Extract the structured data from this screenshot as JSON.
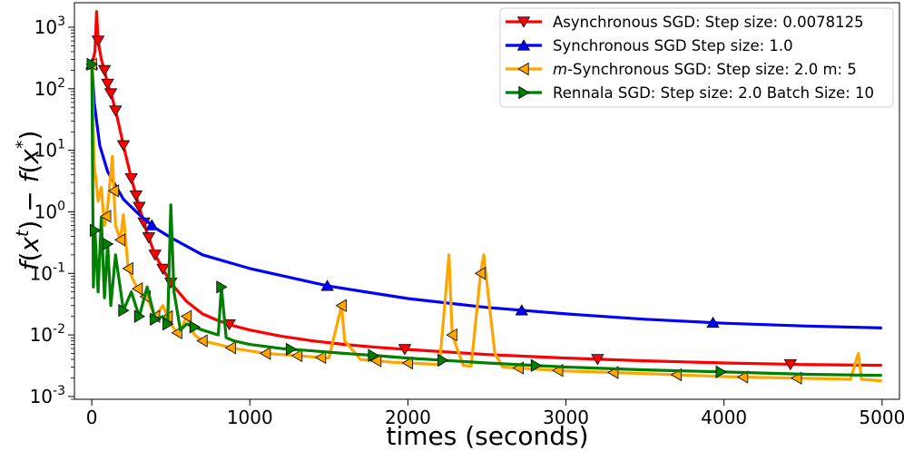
{
  "chart_data": {
    "type": "line",
    "title": "",
    "xlabel": "times (seconds)",
    "ylabel": "f(x^t) − f(x^*)",
    "xlim": [
      -110,
      5110
    ],
    "ylim": [
      0.0009,
      2500
    ],
    "yscale": "log",
    "x_ticks": [
      0,
      1000,
      2000,
      3000,
      4000,
      5000
    ],
    "y_ticks": [
      0.001,
      0.01,
      0.1,
      1,
      10,
      100,
      1000
    ],
    "y_tick_labels": [
      "10",
      "10",
      "10",
      "10",
      "10",
      "10",
      "10"
    ],
    "y_tick_exponents": [
      "-3",
      "-2",
      "-1",
      "0",
      "1",
      "2",
      "3"
    ],
    "grid": false,
    "legend_position": "upper right",
    "series": [
      {
        "name": "Asynchronous SGD: Step size: 0.0078125",
        "name_parts": [
          "Asynchronous SGD: Step size: 0.0078125"
        ],
        "color": "#ff0000",
        "marker": "triangle-down",
        "x": [
          0,
          20,
          30,
          40,
          60,
          80,
          100,
          130,
          160,
          200,
          250,
          300,
          350,
          400,
          500,
          600,
          700,
          800,
          900,
          1000,
          1200,
          1400,
          1600,
          1800,
          2000,
          2500,
          3000,
          3500,
          4000,
          4500,
          5000
        ],
        "y": [
          250,
          400,
          1800,
          600,
          300,
          200,
          120,
          70,
          35,
          12,
          3.5,
          1.2,
          0.45,
          0.2,
          0.07,
          0.035,
          0.022,
          0.017,
          0.014,
          0.012,
          0.0095,
          0.008,
          0.007,
          0.0063,
          0.0058,
          0.0048,
          0.0042,
          0.0038,
          0.0035,
          0.0033,
          0.0032
        ],
        "marker_x": [
          40,
          80,
          100,
          120,
          150,
          200,
          250,
          280,
          300,
          330,
          360,
          400,
          450,
          500,
          870,
          1980,
          3200,
          4420
        ]
      },
      {
        "name": "Synchronous SGD Step size: 1.0",
        "name_parts": [
          "Synchronous SGD Step size: 1.0"
        ],
        "color": "#0000ff",
        "marker": "triangle-up",
        "x": [
          0,
          15,
          50,
          100,
          200,
          300,
          400,
          500,
          700,
          1000,
          1500,
          2000,
          2500,
          3000,
          3500,
          4000,
          4500,
          5000
        ],
        "y": [
          250,
          60,
          12,
          4.5,
          1.6,
          0.9,
          0.55,
          0.38,
          0.2,
          0.12,
          0.062,
          0.039,
          0.028,
          0.022,
          0.018,
          0.0155,
          0.014,
          0.013
        ],
        "marker_x": [
          0,
          380,
          1490,
          2720,
          3930
        ]
      },
      {
        "name": "m-Synchronous  SGD: Step size: 2.0 m: 5",
        "name_parts": [
          "m",
          "-Synchronous  SGD: Step size: 2.0 m: 5"
        ],
        "color": "#ffa500",
        "marker": "triangle-left",
        "x": [
          0,
          15,
          40,
          60,
          80,
          100,
          130,
          150,
          180,
          200,
          230,
          260,
          300,
          350,
          400,
          450,
          500,
          550,
          600,
          650,
          700,
          800,
          900,
          1000,
          1100,
          1200,
          1300,
          1400,
          1500,
          1580,
          1600,
          1700,
          1800,
          1900,
          2000,
          2100,
          2200,
          2260,
          2280,
          2350,
          2400,
          2460,
          2480,
          2550,
          2600,
          2800,
          3000,
          3200,
          3400,
          3600,
          3800,
          4000,
          4200,
          4400,
          4600,
          4800,
          4850,
          4870,
          5000
        ],
        "y": [
          250,
          6,
          1.5,
          2.5,
          0.6,
          1.2,
          8,
          0.6,
          0.35,
          0.9,
          0.12,
          0.08,
          0.05,
          0.04,
          0.02,
          0.03,
          0.015,
          0.01,
          0.02,
          0.01,
          0.008,
          0.007,
          0.006,
          0.0055,
          0.005,
          0.0048,
          0.0046,
          0.0044,
          0.0042,
          0.03,
          0.008,
          0.004,
          0.0038,
          0.0036,
          0.0035,
          0.0034,
          0.0033,
          0.2,
          0.01,
          0.0032,
          0.0031,
          0.1,
          0.2,
          0.005,
          0.003,
          0.0028,
          0.0026,
          0.0025,
          0.0024,
          0.0023,
          0.0022,
          0.0021,
          0.00205,
          0.002,
          0.00195,
          0.0019,
          0.005,
          0.0019,
          0.0018
        ],
        "marker_x": [
          0,
          90,
          140,
          180,
          230,
          290,
          340,
          400,
          480,
          540,
          600,
          700,
          880,
          1100,
          1300,
          1450,
          1580,
          1800,
          2000,
          2280,
          2460,
          2700,
          2950,
          3300,
          3700,
          4120,
          4460
        ]
      },
      {
        "name": "Rennala SGD: Step size: 2.0 Batch Size: 10",
        "name_parts": [
          "Rennala SGD: Step size: 2.0 Batch Size: 10"
        ],
        "color": "#008000",
        "marker": "triangle-right",
        "x": [
          0,
          10,
          20,
          40,
          60,
          80,
          100,
          120,
          150,
          200,
          250,
          300,
          350,
          400,
          450,
          480,
          500,
          520,
          560,
          600,
          700,
          800,
          820,
          850,
          900,
          1000,
          1200,
          1400,
          1600,
          1800,
          2000,
          2500,
          3000,
          3500,
          4000,
          4500,
          5000
        ],
        "y": [
          250,
          0.06,
          0.5,
          0.05,
          0.8,
          0.04,
          0.3,
          0.03,
          0.2,
          0.025,
          0.05,
          0.02,
          0.06,
          0.018,
          0.02,
          0.015,
          1.3,
          0.05,
          0.012,
          0.015,
          0.012,
          0.01,
          0.06,
          0.009,
          0.008,
          0.007,
          0.006,
          0.0055,
          0.005,
          0.0046,
          0.0042,
          0.0035,
          0.003,
          0.0027,
          0.0025,
          0.0023,
          0.0022
        ],
        "marker_x": [
          0,
          20,
          100,
          200,
          300,
          400,
          480,
          650,
          820,
          1260,
          1780,
          2220,
          2810,
          3980
        ]
      }
    ]
  }
}
